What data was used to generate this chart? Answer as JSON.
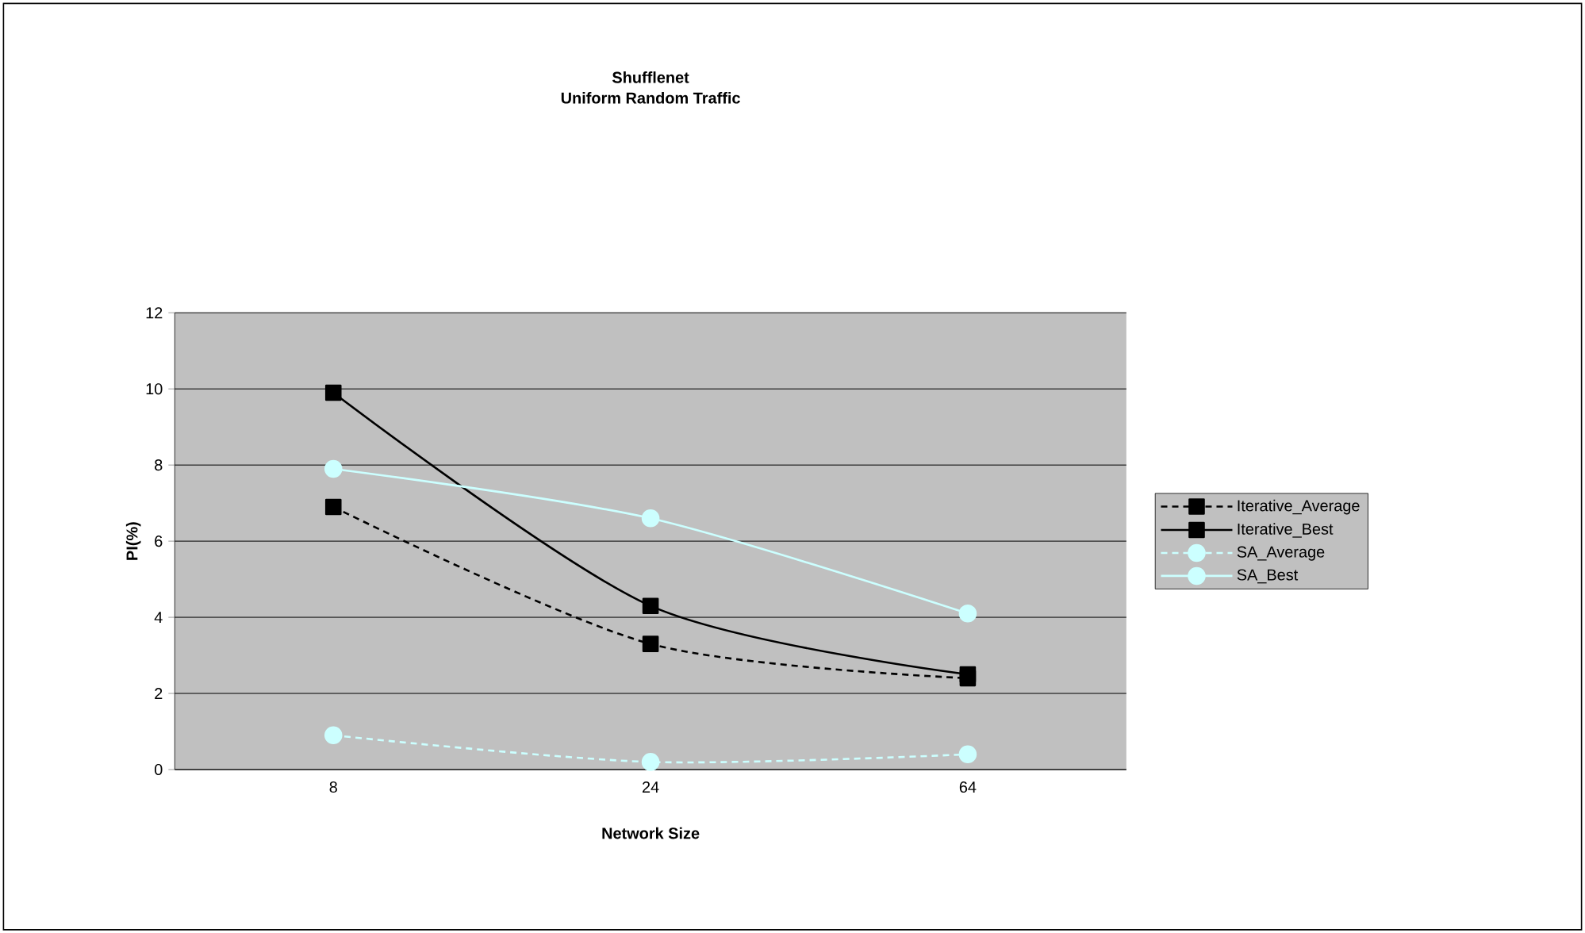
{
  "chart_data": {
    "type": "line",
    "title": "Shufflenet",
    "subtitle": "Uniform Random Traffic",
    "xlabel": "Network Size",
    "ylabel": "PI(%)",
    "categories": [
      "8",
      "24",
      "64"
    ],
    "series": [
      {
        "name": "Iterative_Average",
        "color": "#000000",
        "values": [
          6.9,
          3.3,
          2.4
        ],
        "marker": "square",
        "line_style": "dashed"
      },
      {
        "name": "Iterative_Best",
        "color": "#000000",
        "values": [
          9.9,
          4.3,
          2.5
        ],
        "marker": "square",
        "line_style": "solid"
      },
      {
        "name": "SA_Average",
        "color": "#ccffff",
        "values": [
          0.9,
          0.2,
          0.4
        ],
        "marker": "circle",
        "line_style": "dashed"
      },
      {
        "name": "SA_Best",
        "color": "#ccffff",
        "values": [
          7.9,
          6.6,
          4.1
        ],
        "marker": "circle",
        "line_style": "solid"
      }
    ],
    "ylim": [
      0,
      12
    ],
    "yticks": [
      0,
      2,
      4,
      6,
      8,
      10,
      12
    ],
    "grid": "y",
    "legend": "right"
  }
}
